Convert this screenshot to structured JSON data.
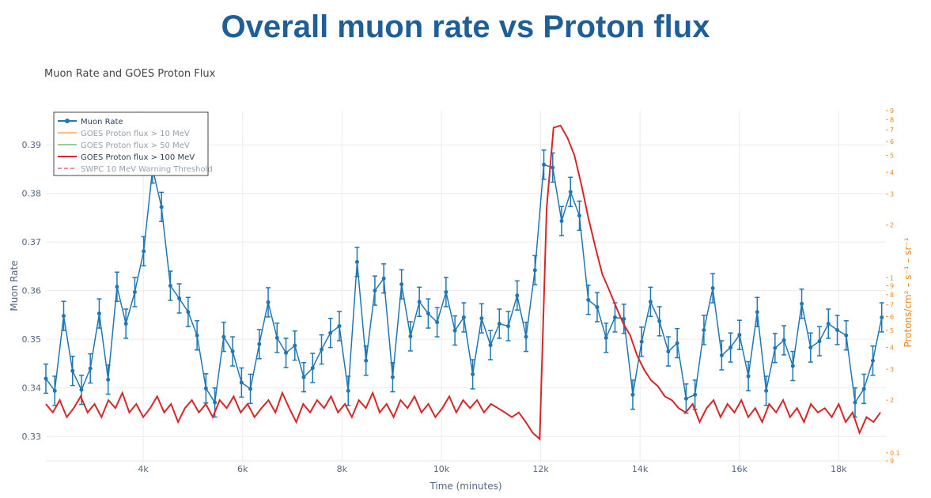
{
  "page_title": "Overall muon rate vs Proton flux",
  "chart_data": {
    "type": "line",
    "title": "Muon Rate and GOES Proton Flux",
    "xlabel": "Time (minutes)",
    "ylabel": "Muon Rate",
    "y2label": "Protons/cm² – s⁻¹ – sr⁻¹",
    "xlim": [
      2040,
      18950
    ],
    "ylim": [
      0.325,
      0.397
    ],
    "y2lim": [
      0.09,
      9
    ],
    "y2scale": "log",
    "grid": true,
    "legend_position": "top-left",
    "xticks": [
      {
        "value": 4000,
        "label": "4k"
      },
      {
        "value": 6000,
        "label": "6k"
      },
      {
        "value": 8000,
        "label": "8k"
      },
      {
        "value": 10000,
        "label": "10k"
      },
      {
        "value": 12000,
        "label": "12k"
      },
      {
        "value": 14000,
        "label": "14k"
      },
      {
        "value": 16000,
        "label": "16k"
      },
      {
        "value": 18000,
        "label": "18k"
      }
    ],
    "yticks": [
      0.33,
      0.34,
      0.35,
      0.36,
      0.37,
      0.38,
      0.39
    ],
    "y2ticks": [
      {
        "value": 0.09,
        "label": "9"
      },
      0.1,
      {
        "value": 0.2,
        "label": "2"
      },
      {
        "value": 0.3,
        "label": "3"
      },
      {
        "value": 0.4,
        "label": "4"
      },
      {
        "value": 0.5,
        "label": "5"
      },
      {
        "value": 0.6,
        "label": "6"
      },
      {
        "value": 0.7,
        "label": "7"
      },
      {
        "value": 0.8,
        "label": "8"
      },
      {
        "value": 0.9,
        "label": "9"
      },
      1,
      2,
      3,
      4,
      5,
      6,
      7,
      8,
      9
    ],
    "series": [
      {
        "name": "Muon Rate",
        "color": "#1f77b4",
        "mode": "lines+markers",
        "axis": "y",
        "error": 0.003,
        "x": [
          2040,
          2219,
          2398,
          2577,
          2756,
          2935,
          3114,
          3293,
          3472,
          3651,
          3830,
          4009,
          4188,
          4367,
          4546,
          4725,
          4904,
          5083,
          5262,
          5441,
          5620,
          5799,
          5978,
          6157,
          6336,
          6515,
          6694,
          6873,
          7052,
          7231,
          7410,
          7589,
          7768,
          7947,
          8126,
          8305,
          8484,
          8663,
          8842,
          9021,
          9200,
          9379,
          9558,
          9737,
          9916,
          10095,
          10274,
          10453,
          10632,
          10811,
          10990,
          11169,
          11348,
          11527,
          11706,
          11885,
          12064,
          12243,
          12422,
          12601,
          12780,
          12959,
          13138,
          13317,
          13496,
          13675,
          13854,
          14033,
          14212,
          14391,
          14570,
          14749,
          14928,
          15107,
          15286,
          15465,
          15644,
          15823,
          16002,
          16181,
          16360,
          16539,
          16718,
          16897,
          17076,
          17255,
          17434,
          17613,
          17792,
          17971,
          18150,
          18329,
          18508,
          18687,
          18866
        ],
        "values": [
          0.3419,
          0.3394,
          0.3548,
          0.3435,
          0.3396,
          0.344,
          0.3553,
          0.3417,
          0.3608,
          0.3532,
          0.3597,
          0.3681,
          0.3851,
          0.3772,
          0.361,
          0.3584,
          0.3556,
          0.3508,
          0.3399,
          0.337,
          0.3505,
          0.3475,
          0.3411,
          0.3398,
          0.349,
          0.3576,
          0.3503,
          0.3472,
          0.3487,
          0.3422,
          0.3441,
          0.3479,
          0.3513,
          0.3527,
          0.3394,
          0.3659,
          0.3456,
          0.36,
          0.3625,
          0.3422,
          0.3613,
          0.3506,
          0.3577,
          0.3553,
          0.3535,
          0.3597,
          0.3518,
          0.3545,
          0.3428,
          0.3543,
          0.3488,
          0.3532,
          0.3527,
          0.359,
          0.3505,
          0.3642,
          0.3859,
          0.3853,
          0.3743,
          0.3803,
          0.3754,
          0.3581,
          0.3566,
          0.3503,
          0.3545,
          0.3542,
          0.3386,
          0.3495,
          0.3577,
          0.3537,
          0.3475,
          0.3492,
          0.3378,
          0.3386,
          0.3519,
          0.3605,
          0.3467,
          0.3483,
          0.3509,
          0.3424,
          0.3556,
          0.3394,
          0.3482,
          0.3498,
          0.3445,
          0.3573,
          0.3483,
          0.3496,
          0.3532,
          0.3519,
          0.3508,
          0.337,
          0.3398,
          0.3456,
          0.3545
        ]
      },
      {
        "name": "GOES Proton flux > 10 MeV",
        "color": "#ff7f0e",
        "axis": "y2",
        "visible": "legendonly"
      },
      {
        "name": "GOES Proton flux > 50 MeV",
        "color": "#2ca02c",
        "axis": "y2",
        "visible": "legendonly"
      },
      {
        "name": "GOES Proton flux > 100 MeV",
        "color": "#d62728",
        "mode": "lines",
        "axis": "y2",
        "x": [
          2040,
          2180,
          2320,
          2460,
          2600,
          2740,
          2880,
          3020,
          3160,
          3300,
          3440,
          3580,
          3720,
          3860,
          4000,
          4140,
          4280,
          4420,
          4560,
          4700,
          4840,
          4980,
          5120,
          5260,
          5400,
          5540,
          5680,
          5820,
          5960,
          6100,
          6240,
          6380,
          6520,
          6660,
          6800,
          6940,
          7080,
          7220,
          7360,
          7500,
          7640,
          7780,
          7920,
          8060,
          8200,
          8340,
          8480,
          8620,
          8760,
          8900,
          9040,
          9180,
          9320,
          9460,
          9600,
          9740,
          9880,
          10020,
          10160,
          10300,
          10440,
          10580,
          10720,
          10860,
          11000,
          11140,
          11280,
          11420,
          11560,
          11700,
          11840,
          11980,
          12120,
          12260,
          12400,
          12540,
          12680,
          12820,
          12960,
          13100,
          13240,
          13380,
          13520,
          13660,
          13800,
          13940,
          14080,
          14220,
          14360,
          14500,
          14640,
          14780,
          14920,
          15060,
          15200,
          15340,
          15480,
          15620,
          15760,
          15900,
          16040,
          16180,
          16320,
          16460,
          16600,
          16740,
          16880,
          17020,
          17160,
          17300,
          17440,
          17580,
          17720,
          17860,
          18000,
          18140,
          18280,
          18420,
          18560,
          18700,
          18840
        ],
        "values": [
          0.19,
          0.17,
          0.2,
          0.16,
          0.18,
          0.21,
          0.17,
          0.19,
          0.16,
          0.2,
          0.18,
          0.22,
          0.17,
          0.19,
          0.16,
          0.18,
          0.21,
          0.17,
          0.19,
          0.15,
          0.18,
          0.2,
          0.17,
          0.19,
          0.16,
          0.2,
          0.18,
          0.21,
          0.17,
          0.19,
          0.16,
          0.18,
          0.2,
          0.17,
          0.22,
          0.18,
          0.15,
          0.19,
          0.17,
          0.2,
          0.18,
          0.21,
          0.17,
          0.19,
          0.16,
          0.2,
          0.18,
          0.22,
          0.17,
          0.19,
          0.16,
          0.2,
          0.18,
          0.21,
          0.17,
          0.19,
          0.16,
          0.18,
          0.21,
          0.17,
          0.2,
          0.18,
          0.2,
          0.17,
          0.19,
          0.18,
          0.17,
          0.16,
          0.17,
          0.15,
          0.13,
          0.12,
          2.5,
          7.2,
          7.4,
          6.3,
          5.0,
          3.4,
          2.2,
          1.5,
          1.05,
          0.85,
          0.68,
          0.55,
          0.47,
          0.36,
          0.3,
          0.26,
          0.24,
          0.21,
          0.2,
          0.18,
          0.17,
          0.19,
          0.15,
          0.18,
          0.2,
          0.16,
          0.19,
          0.17,
          0.2,
          0.16,
          0.18,
          0.15,
          0.19,
          0.17,
          0.2,
          0.16,
          0.18,
          0.15,
          0.19,
          0.17,
          0.18,
          0.16,
          0.19,
          0.15,
          0.17,
          0.13,
          0.16,
          0.15,
          0.17
        ]
      },
      {
        "name": "SWPC 10 MeV Warning Threshold",
        "color": "#d62728",
        "dash": "dash",
        "axis": "y2",
        "visible": "legendonly"
      }
    ]
  }
}
